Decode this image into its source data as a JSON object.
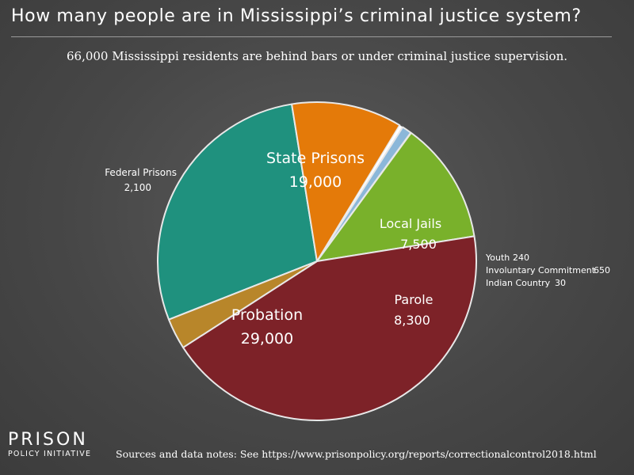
{
  "header": {
    "title": "How many people are in Mississippi’s criminal justice system?",
    "subtitle": "66,000 Mississippi residents are behind bars or under criminal justice supervision."
  },
  "footer": {
    "sources": "Sources and data notes: See https://www.prisonpolicy.org/reports/correctionalcontrol2018.html",
    "logo_main": "PRISON",
    "logo_sub": "POLICY INITIATIVE"
  },
  "chart_data": {
    "type": "pie",
    "title": "How many people are in Mississippi’s criminal justice system?",
    "total": 66000,
    "slices": [
      {
        "label": "State Prisons",
        "value": 19000,
        "value_label": "19,000",
        "color": "#1f917e"
      },
      {
        "label": "Local Jails",
        "value": 7500,
        "value_label": "7,500",
        "color": "#e47a09"
      },
      {
        "label": "Youth",
        "value": 240,
        "value_label": "240",
        "color": "#ffffff"
      },
      {
        "label": "Involuntary Commitment",
        "value": 650,
        "value_label": "650",
        "color": "#8bb7d9"
      },
      {
        "label": "Indian Country",
        "value": 30,
        "value_label": "30",
        "color": "#cfcfcf"
      },
      {
        "label": "Parole",
        "value": 8300,
        "value_label": "8,300",
        "color": "#79b12b"
      },
      {
        "label": "Probation",
        "value": 29000,
        "value_label": "29,000",
        "color": "#7d2228"
      },
      {
        "label": "Federal Prisons",
        "value": 2100,
        "value_label": "2,100",
        "color": "#b8862a"
      }
    ],
    "inside_labels": [
      {
        "label": "State Prisons",
        "value": "19,000"
      },
      {
        "label": "Local Jails",
        "value": "7,500"
      },
      {
        "label": "Parole",
        "value": "8,300"
      },
      {
        "label": "Probation",
        "value": "29,000"
      }
    ],
    "outside_labels": [
      {
        "label": "Federal Prisons",
        "value": "2,100"
      },
      {
        "label": "Youth",
        "value": "240"
      },
      {
        "label": "Involuntary Commitment",
        "value": "650"
      },
      {
        "label": "Indian Country",
        "value": "30"
      }
    ]
  }
}
